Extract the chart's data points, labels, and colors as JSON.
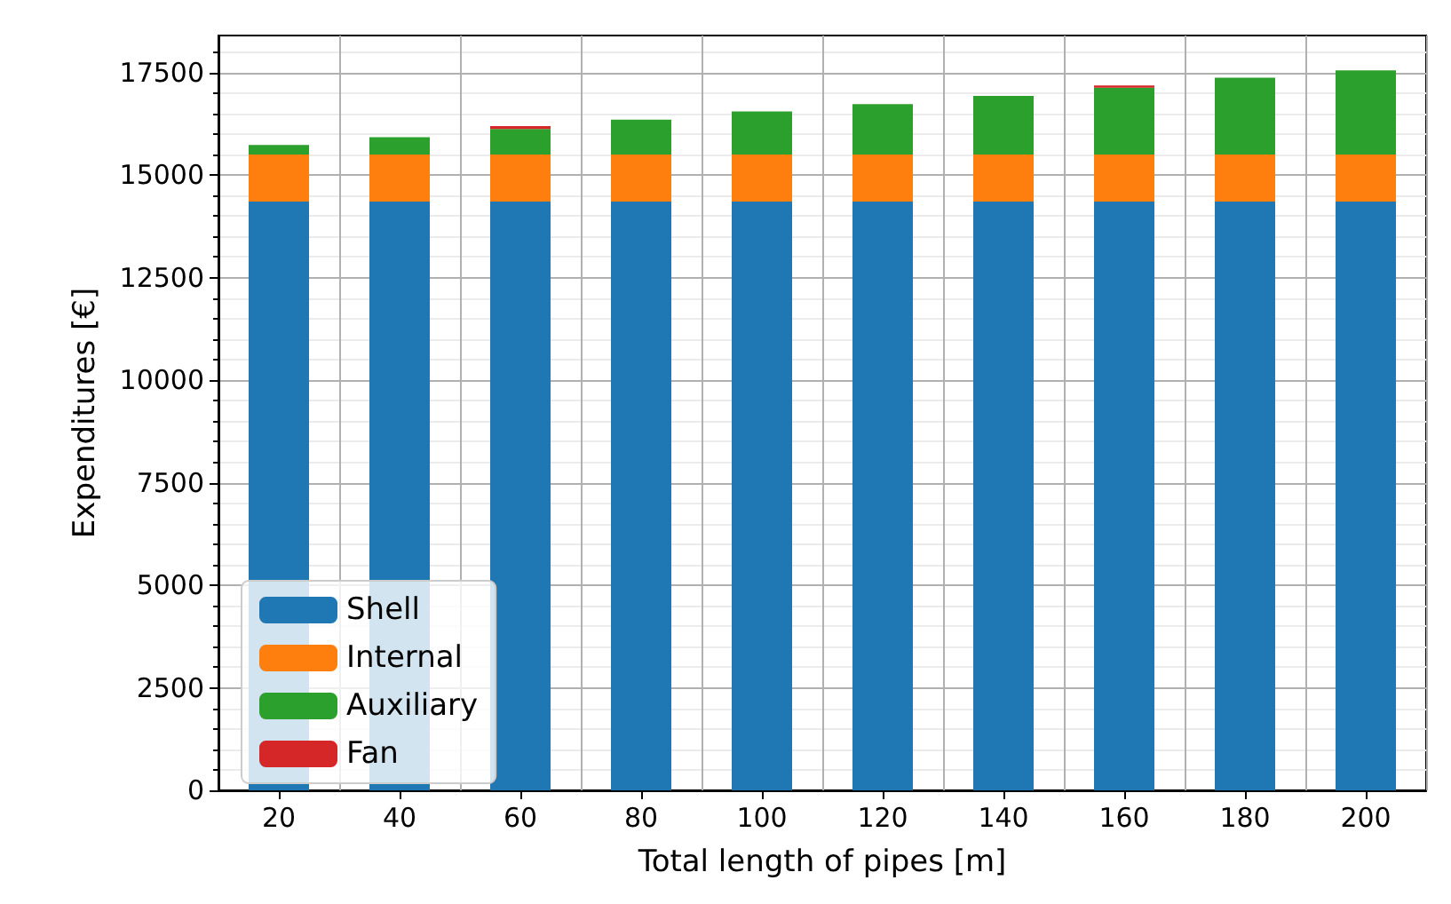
{
  "chart_data": {
    "type": "bar",
    "stacked": true,
    "xlabel": "Total length of pipes [m]",
    "ylabel": "Expenditures [€]",
    "categories": [
      "20",
      "40",
      "60",
      "80",
      "100",
      "120",
      "140",
      "160",
      "180",
      "200"
    ],
    "series": [
      {
        "name": "Shell",
        "color": "#1f77b4",
        "values": [
          14350,
          14350,
          14350,
          14350,
          14350,
          14350,
          14350,
          14350,
          14350,
          14350
        ]
      },
      {
        "name": "Internal",
        "color": "#ff7f0e",
        "values": [
          1150,
          1150,
          1150,
          1150,
          1150,
          1150,
          1150,
          1150,
          1150,
          1150
        ]
      },
      {
        "name": "Auxiliary",
        "color": "#2ca02c",
        "values": [
          230,
          420,
          620,
          850,
          1050,
          1230,
          1430,
          1630,
          1870,
          2050
        ]
      },
      {
        "name": "Fan",
        "color": "#d62728",
        "values": [
          0,
          0,
          70,
          0,
          0,
          0,
          0,
          50,
          0,
          0
        ]
      }
    ],
    "ylim": [
      0,
      18400
    ],
    "yticks": [
      0,
      2500,
      5000,
      7500,
      10000,
      12500,
      15000,
      17500
    ],
    "grid": true,
    "legend": "bottom left"
  }
}
